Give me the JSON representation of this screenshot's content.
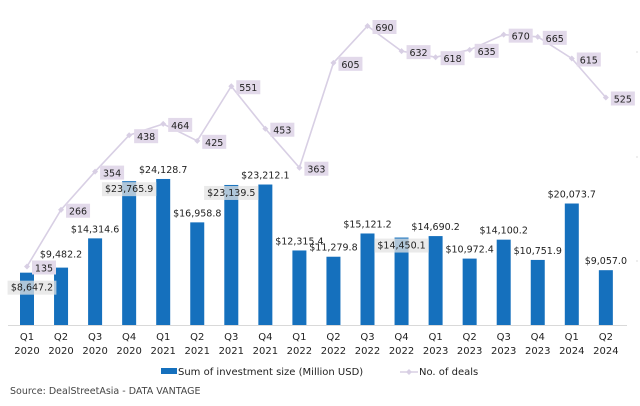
{
  "chart_data": {
    "type": "bar+line",
    "title": "",
    "xlabel": "",
    "ylabel": "",
    "grid": false,
    "legend_position": "bottom",
    "categories": [
      [
        "Q1",
        "2020"
      ],
      [
        "Q2",
        "2020"
      ],
      [
        "Q3",
        "2020"
      ],
      [
        "Q4",
        "2020"
      ],
      [
        "Q1",
        "2021"
      ],
      [
        "Q2",
        "2021"
      ],
      [
        "Q3",
        "2021"
      ],
      [
        "Q4",
        "2021"
      ],
      [
        "Q1",
        "2022"
      ],
      [
        "Q2",
        "2022"
      ],
      [
        "Q3",
        "2022"
      ],
      [
        "Q4",
        "2022"
      ],
      [
        "Q1",
        "2023"
      ],
      [
        "Q2",
        "2023"
      ],
      [
        "Q3",
        "2023"
      ],
      [
        "Q4",
        "2023"
      ],
      [
        "Q1",
        "2024"
      ],
      [
        "Q2",
        "2024"
      ]
    ],
    "series": [
      {
        "name": "Sum of investment size (Million USD)",
        "type": "bar",
        "color": "#1570bd",
        "values": [
          8647.2,
          9482.2,
          14314.6,
          23765.9,
          24128.7,
          16958.8,
          23139.5,
          23212.1,
          12315.4,
          11279.8,
          15121.2,
          14450.1,
          14690.2,
          10972.4,
          14100.2,
          10751.9,
          20073.7,
          9057.0
        ],
        "labels": [
          "$8,647.2",
          "$9,482.2",
          "$14,314.6",
          "$23,765.9",
          "$24,128.7",
          "$16,958.8",
          "$23,139.5",
          "$23,212.1",
          "$12,315.4",
          "$11,279.8",
          "$15,121.2",
          "$14,450.1",
          "$14,690.2",
          "$10,972.4",
          "$14,100.2",
          "$10,751.9",
          "$20,073.7",
          "$9,057.0"
        ],
        "ylim": [
          0,
          53700
        ]
      },
      {
        "name": "No. of deals",
        "type": "line",
        "color": "#d8cfe4",
        "values": [
          135,
          266,
          354,
          438,
          464,
          425,
          551,
          453,
          363,
          605,
          690,
          632,
          618,
          635,
          670,
          665,
          615,
          525
        ],
        "ylim": [
          0,
          750
        ]
      }
    ],
    "source": "Source: DealStreetAsia -  DATA VANTAGE"
  }
}
